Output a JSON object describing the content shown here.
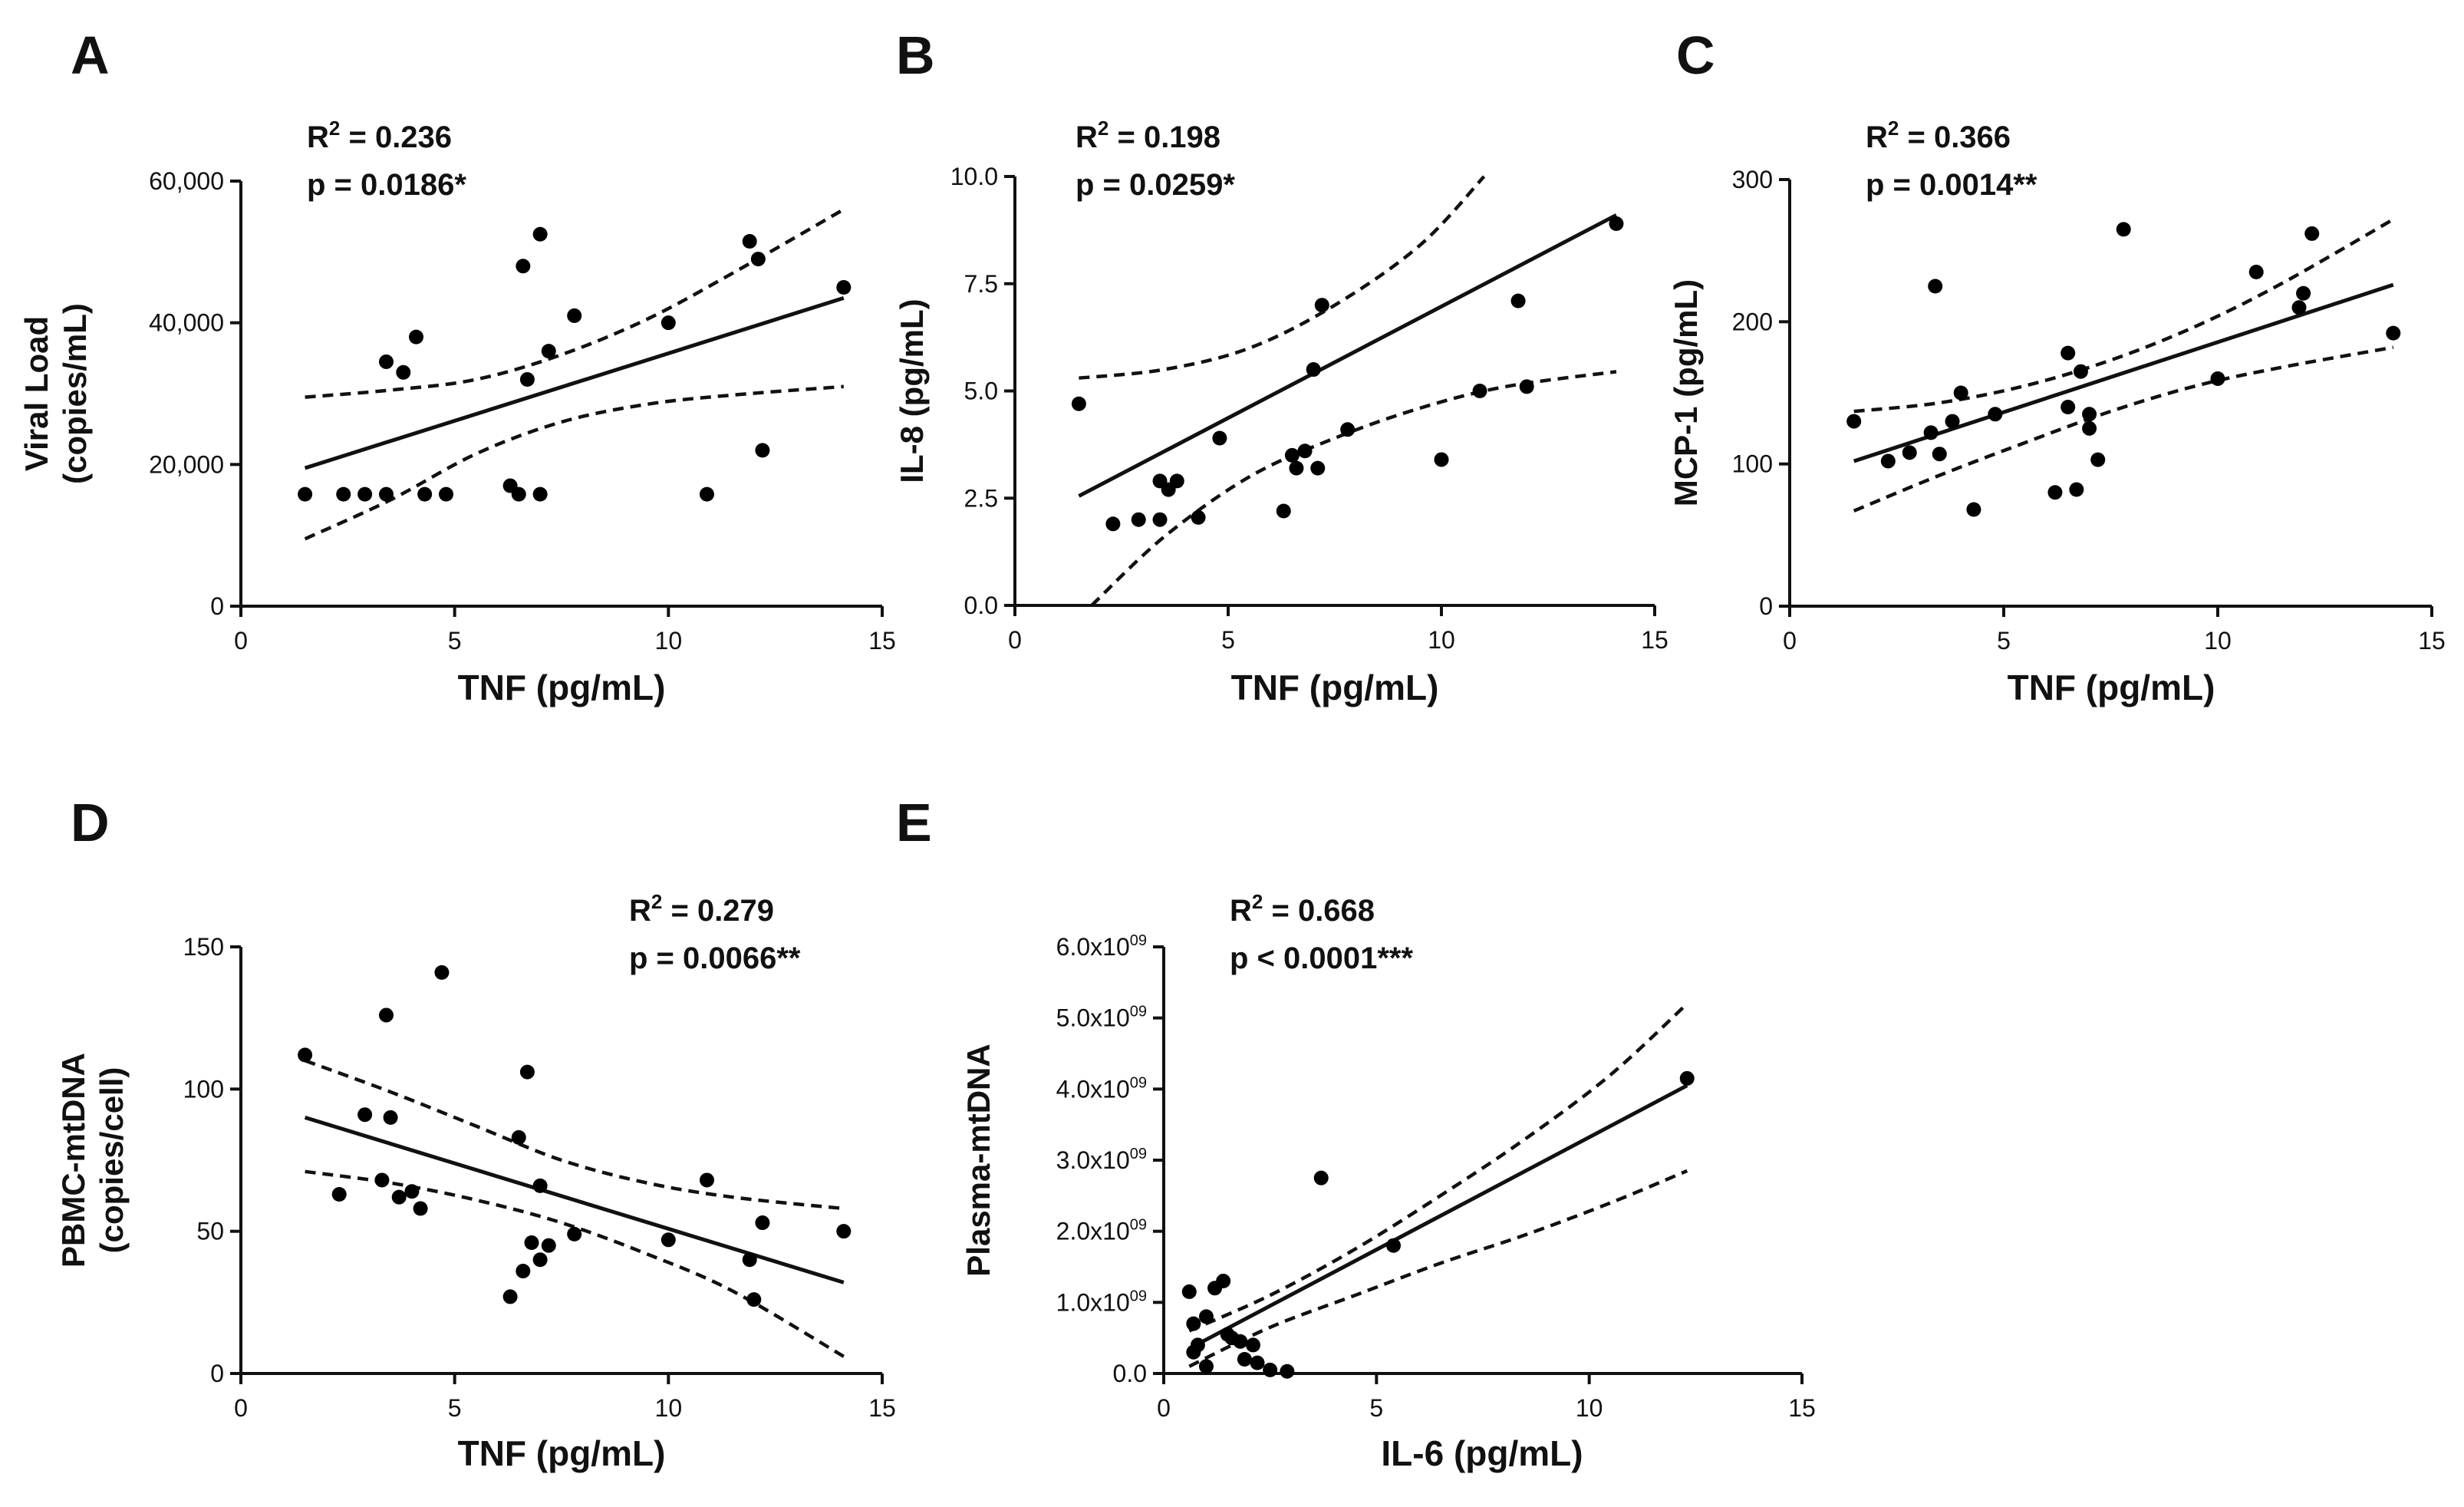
{
  "chart_data": [
    {
      "panel": "A",
      "type": "scatter",
      "ylabel_lines": [
        "Viral Load",
        "(copies/mL)"
      ],
      "xlabel": "TNF (pg/mL)",
      "stat_r2": "0.236",
      "stat_p": "p = 0.0186*",
      "xlim": [
        0,
        15
      ],
      "ylim": [
        0,
        60000
      ],
      "x_ticks": [
        0,
        5,
        10,
        15
      ],
      "x_tick_labels": [
        "0",
        "5",
        "10",
        "15"
      ],
      "y_ticks": [
        0,
        20000,
        40000,
        60000
      ],
      "y_tick_labels": [
        "0",
        "20,000",
        "40,000",
        "60,000"
      ],
      "points": [
        [
          1.5,
          15800
        ],
        [
          2.4,
          15800
        ],
        [
          2.9,
          15800
        ],
        [
          3.4,
          15800
        ],
        [
          3.4,
          34500
        ],
        [
          3.8,
          33000
        ],
        [
          4.1,
          38000
        ],
        [
          4.3,
          15800
        ],
        [
          4.8,
          15800
        ],
        [
          6.3,
          17000
        ],
        [
          6.5,
          15800
        ],
        [
          6.6,
          48000
        ],
        [
          6.7,
          32000
        ],
        [
          7.0,
          15800
        ],
        [
          7.0,
          52500
        ],
        [
          7.2,
          36000
        ],
        [
          7.8,
          41000
        ],
        [
          10.0,
          40000
        ],
        [
          10.9,
          15800
        ],
        [
          11.9,
          51500
        ],
        [
          12.1,
          49000
        ],
        [
          12.2,
          22000
        ],
        [
          14.1,
          45000
        ]
      ],
      "fit": [
        [
          1.5,
          19500
        ],
        [
          14.1,
          43500
        ]
      ],
      "ci_upper": [
        [
          1.5,
          29500
        ],
        [
          3.5,
          30500
        ],
        [
          5.5,
          32000
        ],
        [
          7.5,
          35500
        ],
        [
          9.5,
          40500
        ],
        [
          11.5,
          47000
        ],
        [
          14.1,
          56000
        ]
      ],
      "ci_lower": [
        [
          1.5,
          9500
        ],
        [
          3.5,
          15000
        ],
        [
          5.5,
          21500
        ],
        [
          7.5,
          26000
        ],
        [
          9.5,
          28500
        ],
        [
          11.5,
          29800
        ],
        [
          14.1,
          31000
        ]
      ]
    },
    {
      "panel": "B",
      "type": "scatter",
      "ylabel_lines": [
        "IL-8 (pg/mL)"
      ],
      "xlabel": "TNF (pg/mL)",
      "stat_r2": "0.198",
      "stat_p": "p = 0.0259*",
      "xlim": [
        0,
        15
      ],
      "ylim": [
        0,
        10
      ],
      "x_ticks": [
        0,
        5,
        10,
        15
      ],
      "x_tick_labels": [
        "0",
        "5",
        "10",
        "15"
      ],
      "y_ticks": [
        0,
        2.5,
        5,
        7.5,
        10
      ],
      "y_tick_labels": [
        "0.0",
        "2.5",
        "5.0",
        "7.5",
        "10.0"
      ],
      "points": [
        [
          1.5,
          4.7
        ],
        [
          2.3,
          1.9
        ],
        [
          2.9,
          2.0
        ],
        [
          3.4,
          2.0
        ],
        [
          3.4,
          2.9
        ],
        [
          3.6,
          2.7
        ],
        [
          3.8,
          2.9
        ],
        [
          4.3,
          2.05
        ],
        [
          4.8,
          3.9
        ],
        [
          6.3,
          2.2
        ],
        [
          6.5,
          3.5
        ],
        [
          6.6,
          3.2
        ],
        [
          6.8,
          3.6
        ],
        [
          7.0,
          5.5
        ],
        [
          7.1,
          3.2
        ],
        [
          7.2,
          7.0
        ],
        [
          7.8,
          4.1
        ],
        [
          10.0,
          3.4
        ],
        [
          10.9,
          5.0
        ],
        [
          11.8,
          7.1
        ],
        [
          12.0,
          5.1
        ],
        [
          14.1,
          8.9
        ]
      ],
      "fit": [
        [
          1.5,
          2.55
        ],
        [
          14.1,
          9.1
        ]
      ],
      "ci_upper": [
        [
          1.5,
          5.3
        ],
        [
          3.5,
          5.5
        ],
        [
          5.5,
          6.0
        ],
        [
          7.5,
          7.0
        ],
        [
          9.5,
          8.4
        ],
        [
          11.0,
          10.0
        ]
      ],
      "ci_lower": [
        [
          1.8,
          0.0
        ],
        [
          3.5,
          1.6
        ],
        [
          5.5,
          3.0
        ],
        [
          7.5,
          3.9
        ],
        [
          9.5,
          4.6
        ],
        [
          11.5,
          5.1
        ],
        [
          14.1,
          5.45
        ]
      ]
    },
    {
      "panel": "C",
      "type": "scatter",
      "ylabel_lines": [
        "MCP-1 (pg/mL)"
      ],
      "xlabel": "TNF (pg/mL)",
      "stat_r2": "0.366",
      "stat_p": "p = 0.0014**",
      "xlim": [
        0,
        15
      ],
      "ylim": [
        0,
        300
      ],
      "x_ticks": [
        0,
        5,
        10,
        15
      ],
      "x_tick_labels": [
        "0",
        "5",
        "10",
        "15"
      ],
      "y_ticks": [
        0,
        100,
        200,
        300
      ],
      "y_tick_labels": [
        "0",
        "100",
        "200",
        "300"
      ],
      "points": [
        [
          1.5,
          130
        ],
        [
          2.3,
          102
        ],
        [
          2.8,
          108
        ],
        [
          3.3,
          122
        ],
        [
          3.4,
          225
        ],
        [
          3.5,
          107
        ],
        [
          3.8,
          130
        ],
        [
          4.0,
          150
        ],
        [
          4.3,
          68
        ],
        [
          4.8,
          135
        ],
        [
          6.2,
          80
        ],
        [
          6.5,
          140
        ],
        [
          6.5,
          178
        ],
        [
          6.7,
          82
        ],
        [
          6.8,
          165
        ],
        [
          7.0,
          135
        ],
        [
          7.0,
          125
        ],
        [
          7.2,
          103
        ],
        [
          7.8,
          265
        ],
        [
          10.0,
          160
        ],
        [
          10.9,
          235
        ],
        [
          11.9,
          210
        ],
        [
          12.0,
          220
        ],
        [
          12.2,
          262
        ],
        [
          14.1,
          192
        ]
      ],
      "fit": [
        [
          1.5,
          102
        ],
        [
          14.1,
          226
        ]
      ],
      "ci_upper": [
        [
          1.5,
          137
        ],
        [
          3.5,
          143
        ],
        [
          5.5,
          155
        ],
        [
          7.5,
          173
        ],
        [
          9.5,
          197
        ],
        [
          11.5,
          227
        ],
        [
          14.1,
          272
        ]
      ],
      "ci_lower": [
        [
          1.5,
          67
        ],
        [
          3.5,
          92
        ],
        [
          5.5,
          115
        ],
        [
          7.5,
          137
        ],
        [
          9.5,
          155
        ],
        [
          11.5,
          168
        ],
        [
          14.1,
          182
        ]
      ]
    },
    {
      "panel": "D",
      "type": "scatter",
      "ylabel_lines": [
        "PBMC-mtDNA",
        "(copies/cell)"
      ],
      "xlabel": "TNF (pg/mL)",
      "stat_r2": "0.279",
      "stat_p": "p = 0.0066**",
      "xlim": [
        0,
        15
      ],
      "ylim": [
        0,
        150
      ],
      "x_ticks": [
        0,
        5,
        10,
        15
      ],
      "x_tick_labels": [
        "0",
        "5",
        "10",
        "15"
      ],
      "y_ticks": [
        0,
        50,
        100,
        150
      ],
      "y_tick_labels": [
        "0",
        "50",
        "100",
        "150"
      ],
      "points": [
        [
          1.5,
          112
        ],
        [
          2.3,
          63
        ],
        [
          2.9,
          91
        ],
        [
          3.3,
          68
        ],
        [
          3.4,
          126
        ],
        [
          3.5,
          90
        ],
        [
          3.7,
          62
        ],
        [
          4.0,
          64
        ],
        [
          4.2,
          58
        ],
        [
          4.7,
          141
        ],
        [
          6.3,
          27
        ],
        [
          6.5,
          83
        ],
        [
          6.6,
          36
        ],
        [
          6.7,
          106
        ],
        [
          6.8,
          46
        ],
        [
          7.0,
          66
        ],
        [
          7.0,
          40
        ],
        [
          7.2,
          45
        ],
        [
          7.8,
          49
        ],
        [
          10.0,
          47
        ],
        [
          10.9,
          68
        ],
        [
          11.9,
          40
        ],
        [
          12.0,
          26
        ],
        [
          12.2,
          53
        ],
        [
          14.1,
          50
        ]
      ],
      "fit": [
        [
          1.5,
          90
        ],
        [
          14.1,
          32
        ]
      ],
      "ci_upper": [
        [
          1.5,
          110
        ],
        [
          3.5,
          99
        ],
        [
          5.5,
          87
        ],
        [
          7.5,
          75
        ],
        [
          9.5,
          67
        ],
        [
          11.5,
          62
        ],
        [
          14.1,
          58
        ]
      ],
      "ci_lower": [
        [
          1.5,
          71
        ],
        [
          3.5,
          67
        ],
        [
          5.5,
          61
        ],
        [
          7.5,
          53
        ],
        [
          9.5,
          42
        ],
        [
          11.5,
          29
        ],
        [
          14.1,
          6
        ]
      ]
    },
    {
      "panel": "E",
      "type": "scatter",
      "ylabel_lines": [
        "Plasma-mtDNA"
      ],
      "xlabel": "IL-6 (pg/mL)",
      "stat_r2": "0.668",
      "stat_p": "p < 0.0001***",
      "xlim": [
        0,
        15
      ],
      "ylim": [
        0,
        6000000000
      ],
      "x_ticks": [
        0,
        5,
        10,
        15
      ],
      "x_tick_labels": [
        "0",
        "5",
        "10",
        "15"
      ],
      "y_ticks": [
        0,
        1000000000,
        2000000000,
        3000000000,
        4000000000,
        5000000000,
        6000000000
      ],
      "y_tick_labels": [
        "0.0",
        "1.0x10",
        "2.0x10",
        "3.0x10",
        "4.0x10",
        "5.0x10",
        "6.0x10"
      ],
      "y_tick_exp": [
        "",
        "09",
        "09",
        "09",
        "09",
        "09",
        "09"
      ],
      "points": [
        [
          0.6,
          1150000000
        ],
        [
          0.7,
          700000000
        ],
        [
          0.7,
          300000000
        ],
        [
          0.8,
          400000000
        ],
        [
          1.0,
          800000000
        ],
        [
          1.0,
          100000000
        ],
        [
          1.2,
          1200000000
        ],
        [
          1.4,
          1300000000
        ],
        [
          1.5,
          550000000
        ],
        [
          1.6,
          500000000
        ],
        [
          1.8,
          450000000
        ],
        [
          1.9,
          200000000
        ],
        [
          2.1,
          400000000
        ],
        [
          2.2,
          150000000
        ],
        [
          2.5,
          50000000
        ],
        [
          2.9,
          30000000
        ],
        [
          3.7,
          2750000000
        ],
        [
          5.4,
          1800000000
        ],
        [
          12.3,
          4150000000
        ]
      ],
      "fit": [
        [
          0.6,
          350000000
        ],
        [
          12.3,
          4050000000
        ]
      ],
      "ci_upper": [
        [
          0.6,
          600000000
        ],
        [
          2.5,
          1100000000
        ],
        [
          4.5,
          1750000000
        ],
        [
          6.5,
          2500000000
        ],
        [
          8.5,
          3300000000
        ],
        [
          10.5,
          4200000000
        ],
        [
          12.3,
          5200000000
        ]
      ],
      "ci_lower": [
        [
          0.6,
          100000000
        ],
        [
          2.5,
          650000000
        ],
        [
          4.5,
          1100000000
        ],
        [
          6.5,
          1550000000
        ],
        [
          8.5,
          1950000000
        ],
        [
          10.5,
          2400000000
        ],
        [
          12.3,
          2850000000
        ]
      ]
    }
  ]
}
